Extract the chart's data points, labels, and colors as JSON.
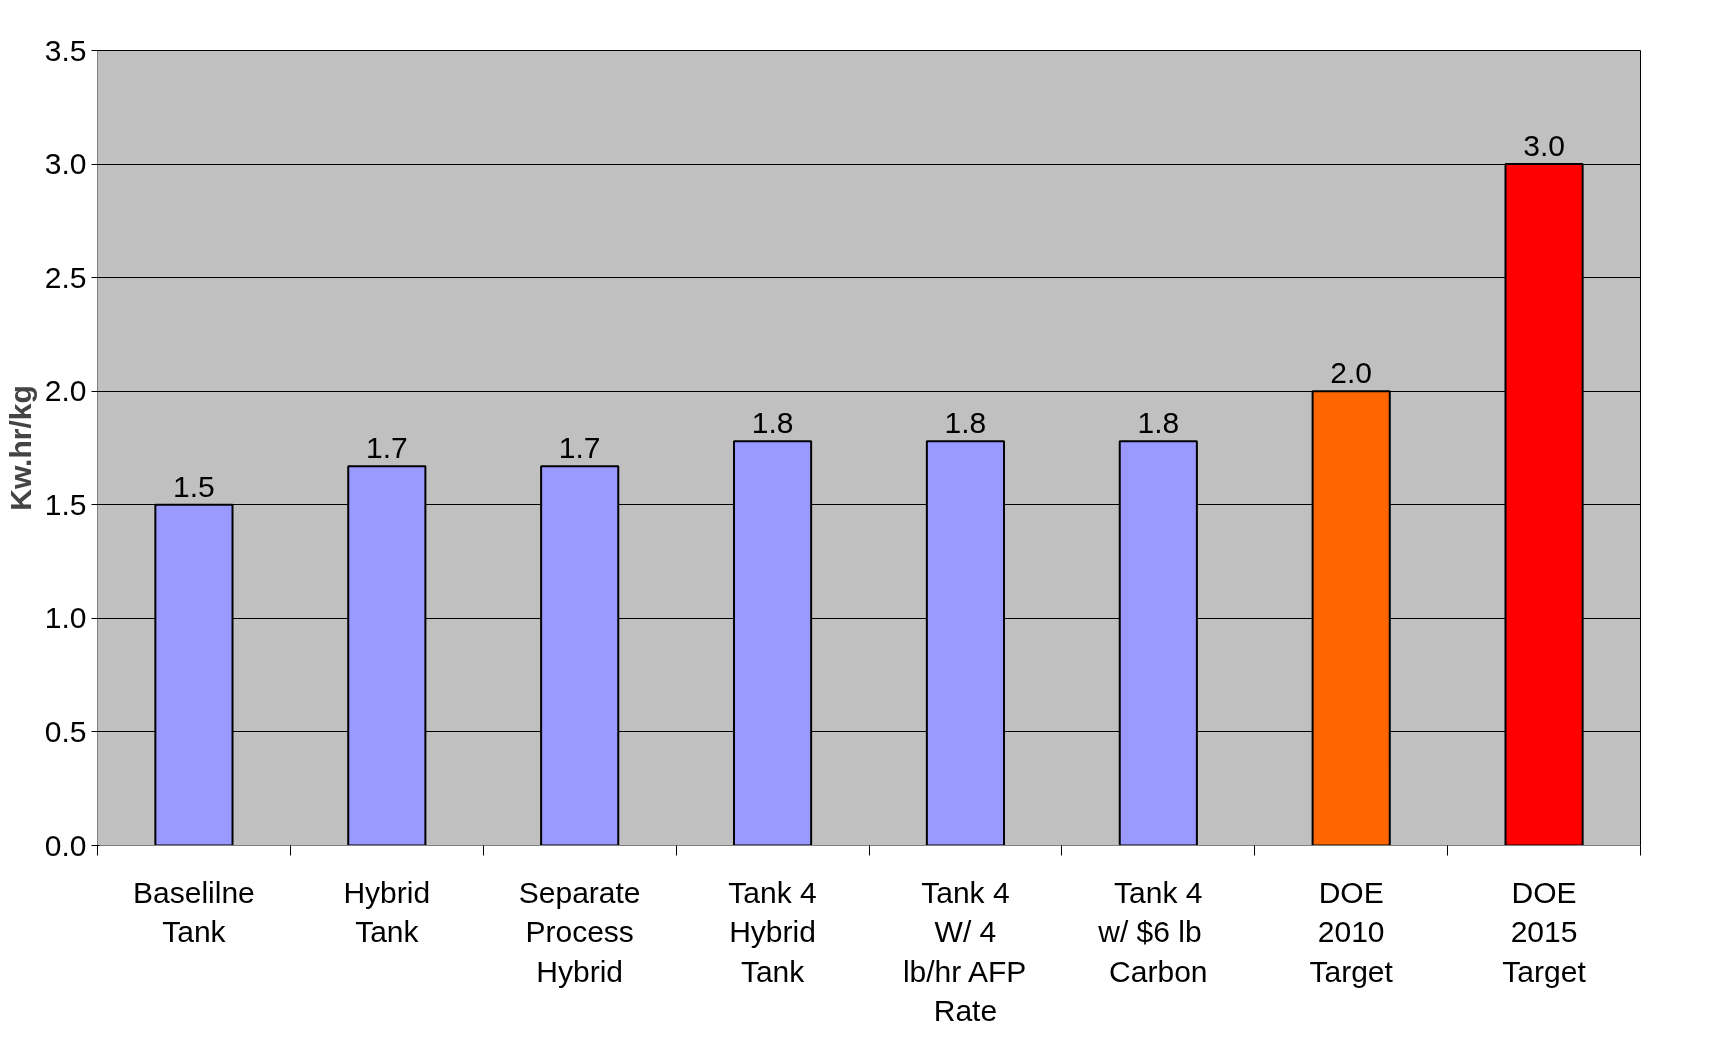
{
  "chart_data": {
    "type": "bar",
    "ylabel": "Kw.hr/kg",
    "categories": [
      "Baselilne\nTank",
      "Hybrid\nTank",
      "Separate\nProcess\nHybrid",
      "Tank 4\nHybrid\nTank",
      "Tank 4\nW/ 4\nlb/hr AFP\nRate",
      "Tank 4\nw/   $6 lb\nCarbon",
      "DOE\n2010\nTarget",
      "DOE\n2015\nTarget"
    ],
    "values": [
      1.5,
      1.67,
      1.67,
      1.78,
      1.78,
      1.78,
      2.0,
      3.0
    ],
    "value_labels": [
      "1.5",
      "1.7",
      "1.7",
      "1.8",
      "1.8",
      "1.8",
      "2.0",
      "3.0"
    ],
    "colors": [
      "#9999ff",
      "#9999ff",
      "#9999ff",
      "#9999ff",
      "#9999ff",
      "#9999ff",
      "#ff6600",
      "#ff0000"
    ],
    "ylim": [
      0,
      3.5
    ],
    "yticks": [
      {
        "value": 0,
        "label": "0.0"
      },
      {
        "value": 0.5,
        "label": "0.5"
      },
      {
        "value": 1,
        "label": "1.0"
      },
      {
        "value": 1.5,
        "label": "1.5"
      },
      {
        "value": 2,
        "label": "2.0"
      },
      {
        "value": 2.5,
        "label": "2.5"
      },
      {
        "value": 3,
        "label": "3.0"
      },
      {
        "value": 3.5,
        "label": "3.5"
      }
    ],
    "grid": "y"
  }
}
